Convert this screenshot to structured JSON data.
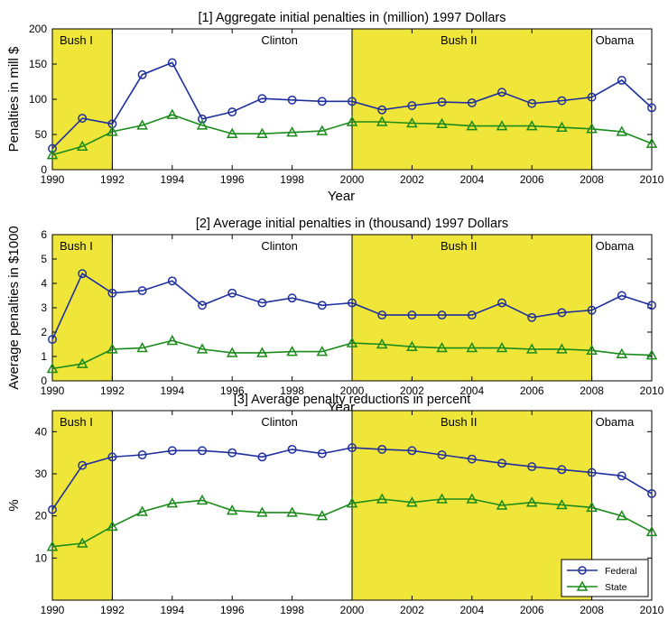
{
  "colors": {
    "federal": "#1f2f9e",
    "state": "#1a8a1a",
    "era_fill": "#f0e63a"
  },
  "legend": {
    "federal": "Federal",
    "state": "State"
  },
  "chart_data": [
    {
      "type": "line",
      "title": "[1] Aggregate initial penalties in (million) 1997 Dollars",
      "xlabel": "Year",
      "ylabel": "Penalties in mill $",
      "xlim": [
        1990,
        2010
      ],
      "ylim": [
        0,
        200
      ],
      "xticks": [
        1990,
        1992,
        1994,
        1996,
        1998,
        2000,
        2002,
        2004,
        2006,
        2008,
        2010
      ],
      "yticks": [
        0,
        50,
        100,
        150,
        200
      ],
      "x": [
        1990,
        1991,
        1992,
        1993,
        1994,
        1995,
        1996,
        1997,
        1998,
        1999,
        2000,
        2001,
        2002,
        2003,
        2004,
        2005,
        2006,
        2007,
        2008,
        2009,
        2010
      ],
      "eras": [
        {
          "label": "Bush I",
          "start": 1990,
          "end": 1992,
          "shaded": true
        },
        {
          "label": "Clinton",
          "start": 1992,
          "end": 2000,
          "shaded": false
        },
        {
          "label": "Bush II",
          "start": 2000,
          "end": 2008,
          "shaded": true
        },
        {
          "label": "Obama",
          "start": 2008,
          "end": 2010,
          "shaded": false
        }
      ],
      "series": [
        {
          "name": "Federal",
          "marker": "circle",
          "values": [
            30,
            73,
            65,
            135,
            152,
            72,
            82,
            101,
            99,
            97,
            97,
            85,
            91,
            96,
            95,
            110,
            94,
            98,
            103,
            127,
            88
          ]
        },
        {
          "name": "State",
          "marker": "triangle",
          "values": [
            21,
            33,
            54,
            63,
            78,
            63,
            51,
            51,
            53,
            55,
            68,
            68,
            66,
            65,
            62,
            62,
            62,
            60,
            58,
            54,
            37
          ]
        }
      ]
    },
    {
      "type": "line",
      "title": "[2] Average initial penalties in (thousand) 1997 Dollars",
      "xlabel": "Year",
      "ylabel": "Average penalties in $1000",
      "xlim": [
        1990,
        2010
      ],
      "ylim": [
        0,
        6
      ],
      "xticks": [
        1990,
        1992,
        1994,
        1996,
        1998,
        2000,
        2002,
        2004,
        2006,
        2008,
        2010
      ],
      "yticks": [
        0,
        1,
        2,
        3,
        4,
        5,
        6
      ],
      "x": [
        1990,
        1991,
        1992,
        1993,
        1994,
        1995,
        1996,
        1997,
        1998,
        1999,
        2000,
        2001,
        2002,
        2003,
        2004,
        2005,
        2006,
        2007,
        2008,
        2009,
        2010
      ],
      "eras": [
        {
          "label": "Bush I",
          "start": 1990,
          "end": 1992,
          "shaded": true
        },
        {
          "label": "Clinton",
          "start": 1992,
          "end": 2000,
          "shaded": false
        },
        {
          "label": "Bush II",
          "start": 2000,
          "end": 2008,
          "shaded": true
        },
        {
          "label": "Obama",
          "start": 2008,
          "end": 2010,
          "shaded": false
        }
      ],
      "series": [
        {
          "name": "Federal",
          "marker": "circle",
          "values": [
            1.7,
            4.4,
            3.6,
            3.7,
            4.1,
            3.1,
            3.6,
            3.2,
            3.4,
            3.1,
            3.2,
            2.7,
            2.7,
            2.7,
            2.7,
            3.2,
            2.6,
            2.8,
            2.9,
            3.5,
            3.1
          ]
        },
        {
          "name": "State",
          "marker": "triangle",
          "values": [
            0.5,
            0.7,
            1.3,
            1.35,
            1.65,
            1.3,
            1.15,
            1.15,
            1.2,
            1.2,
            1.55,
            1.5,
            1.4,
            1.35,
            1.35,
            1.35,
            1.3,
            1.3,
            1.25,
            1.1,
            1.05
          ]
        }
      ]
    },
    {
      "type": "line",
      "title": "[3] Average penalty reductions in percent",
      "xlabel": "Year",
      "ylabel": "%",
      "xlim": [
        1990,
        2010
      ],
      "ylim": [
        0,
        45
      ],
      "xticks": [
        1990,
        1992,
        1994,
        1996,
        1998,
        2000,
        2002,
        2004,
        2006,
        2008,
        2010
      ],
      "yticks": [
        10,
        20,
        30,
        40
      ],
      "x": [
        1990,
        1991,
        1992,
        1993,
        1994,
        1995,
        1996,
        1997,
        1998,
        1999,
        2000,
        2001,
        2002,
        2003,
        2004,
        2005,
        2006,
        2007,
        2008,
        2009,
        2010
      ],
      "eras": [
        {
          "label": "Bush I",
          "start": 1990,
          "end": 1992,
          "shaded": true
        },
        {
          "label": "Clinton",
          "start": 1992,
          "end": 2000,
          "shaded": false
        },
        {
          "label": "Bush II",
          "start": 2000,
          "end": 2008,
          "shaded": true
        },
        {
          "label": "Obama",
          "start": 2008,
          "end": 2010,
          "shaded": false
        }
      ],
      "legend": "bottom-right",
      "series": [
        {
          "name": "Federal",
          "marker": "circle",
          "values": [
            21.5,
            32,
            34,
            34.5,
            35.5,
            35.5,
            35,
            34,
            35.8,
            34.8,
            36.2,
            35.8,
            35.5,
            34.5,
            33.5,
            32.5,
            31.7,
            31,
            30.3,
            29.5,
            25.3
          ]
        },
        {
          "name": "State",
          "marker": "triangle",
          "values": [
            12.7,
            13.5,
            17.5,
            21,
            23,
            23.7,
            21.3,
            20.8,
            20.8,
            20,
            23,
            24,
            23.2,
            24,
            24,
            22.5,
            23.2,
            22.6,
            22,
            20,
            16.2
          ]
        }
      ]
    }
  ]
}
